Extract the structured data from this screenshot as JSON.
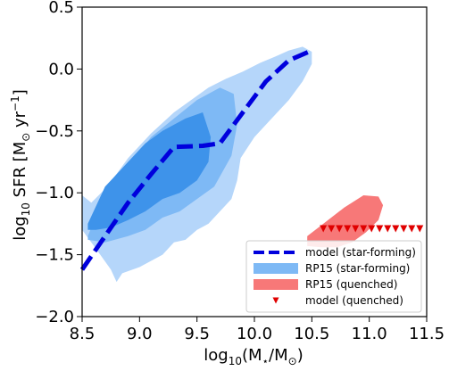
{
  "chart_data": {
    "type": "scatter",
    "xlim": [
      8.5,
      11.5
    ],
    "ylim": [
      -2.0,
      0.5
    ],
    "x_ticks": [
      8.5,
      9.0,
      9.5,
      10.0,
      10.5,
      11.0,
      11.5
    ],
    "x_tick_labels": [
      "8.5",
      "9.0",
      "9.5",
      "10.0",
      "10.5",
      "11.0",
      "11.5"
    ],
    "y_ticks": [
      -2.0,
      -1.5,
      -1.0,
      -0.5,
      0.0,
      0.5
    ],
    "y_tick_labels": [
      "−2.0",
      "−1.5",
      "−1.0",
      "−0.5",
      "0.0",
      "0.5"
    ],
    "xlabel": {
      "pre": "log",
      "sub": "10",
      "post": "(M",
      "star": "⋆",
      "post2": "/M",
      "sun": "⊙",
      "close": ")"
    },
    "ylabel": {
      "pre": "log",
      "sub": "10",
      "main": " SFR [M",
      "sun": "⊙",
      "unit": " yr",
      "sup": "−1",
      "close": "]"
    },
    "grid": false,
    "legend_position": "lower-right",
    "series": [
      {
        "name": "model (star-forming)",
        "kind": "line",
        "style": "dashed",
        "color": "#0000dd",
        "x": [
          8.5,
          8.7,
          8.9,
          9.1,
          9.3,
          9.55,
          9.7,
          9.9,
          10.1,
          10.3,
          10.5
        ],
        "y": [
          -1.62,
          -1.35,
          -1.08,
          -0.85,
          -0.63,
          -0.62,
          -0.6,
          -0.35,
          -0.1,
          0.07,
          0.15
        ]
      },
      {
        "name": "RP15 (star-forming)",
        "kind": "contour",
        "colors": [
          "#b5d6fa",
          "#7eb9f5",
          "#3e93ea"
        ],
        "levels": [
          {
            "x": [
              8.5,
              8.58,
              8.72,
              8.9,
              9.1,
              9.3,
              9.45,
              9.6,
              9.75,
              9.9,
              10.05,
              10.18,
              10.3,
              10.42,
              10.5,
              10.5,
              10.42,
              10.3,
              10.15,
              10.0,
              9.88,
              9.85,
              9.8,
              9.7,
              9.6,
              9.5,
              9.4,
              9.3,
              9.2,
              9.0,
              8.85,
              8.8,
              8.75,
              8.62,
              8.5
            ],
            "y": [
              -1.02,
              -1.08,
              -0.95,
              -0.72,
              -0.52,
              -0.35,
              -0.25,
              -0.15,
              -0.08,
              -0.02,
              0.05,
              0.1,
              0.15,
              0.18,
              0.14,
              0.04,
              -0.1,
              -0.25,
              -0.4,
              -0.55,
              -0.72,
              -0.9,
              -1.05,
              -1.15,
              -1.25,
              -1.3,
              -1.38,
              -1.4,
              -1.5,
              -1.6,
              -1.65,
              -1.72,
              -1.62,
              -1.45,
              -1.3
            ]
          },
          {
            "x": [
              8.55,
              8.7,
              8.9,
              9.1,
              9.3,
              9.5,
              9.7,
              9.82,
              9.85,
              9.8,
              9.65,
              9.5,
              9.35,
              9.2,
              9.05,
              8.9,
              8.7,
              8.55
            ],
            "y": [
              -1.35,
              -1.0,
              -0.78,
              -0.55,
              -0.4,
              -0.25,
              -0.15,
              -0.2,
              -0.45,
              -0.7,
              -0.95,
              -1.05,
              -1.15,
              -1.2,
              -1.3,
              -1.35,
              -1.4,
              -1.38
            ]
          },
          {
            "x": [
              8.55,
              8.7,
              8.9,
              9.05,
              9.2,
              9.4,
              9.55,
              9.62,
              9.6,
              9.5,
              9.35,
              9.2,
              9.05,
              8.9,
              8.75,
              8.62,
              8.55
            ],
            "y": [
              -1.25,
              -0.95,
              -0.75,
              -0.6,
              -0.5,
              -0.4,
              -0.35,
              -0.55,
              -0.75,
              -0.9,
              -1.0,
              -1.05,
              -1.15,
              -1.22,
              -1.28,
              -1.3,
              -1.3
            ]
          }
        ]
      },
      {
        "name": "RP15 (quenched)",
        "kind": "contour",
        "colors": [
          "#f77878"
        ],
        "levels": [
          {
            "x": [
              10.46,
              10.6,
              10.78,
              10.95,
              11.08,
              11.12,
              11.08,
              10.97,
              10.85,
              10.72,
              10.58,
              10.46
            ],
            "y": [
              -1.35,
              -1.25,
              -1.12,
              -1.02,
              -1.03,
              -1.1,
              -1.22,
              -1.32,
              -1.4,
              -1.44,
              -1.44,
              -1.43
            ]
          }
        ]
      },
      {
        "name": "model (quenched)",
        "kind": "scatter",
        "marker": "triangle-down",
        "color": "#e00000",
        "x": [
          10.6,
          10.67,
          10.74,
          10.81,
          10.88,
          10.95,
          11.02,
          11.09,
          11.16,
          11.23,
          11.3,
          11.37,
          11.44
        ],
        "y": [
          -1.29,
          -1.29,
          -1.29,
          -1.29,
          -1.29,
          -1.29,
          -1.29,
          -1.29,
          -1.29,
          -1.29,
          -1.29,
          -1.29,
          -1.29
        ]
      }
    ]
  }
}
